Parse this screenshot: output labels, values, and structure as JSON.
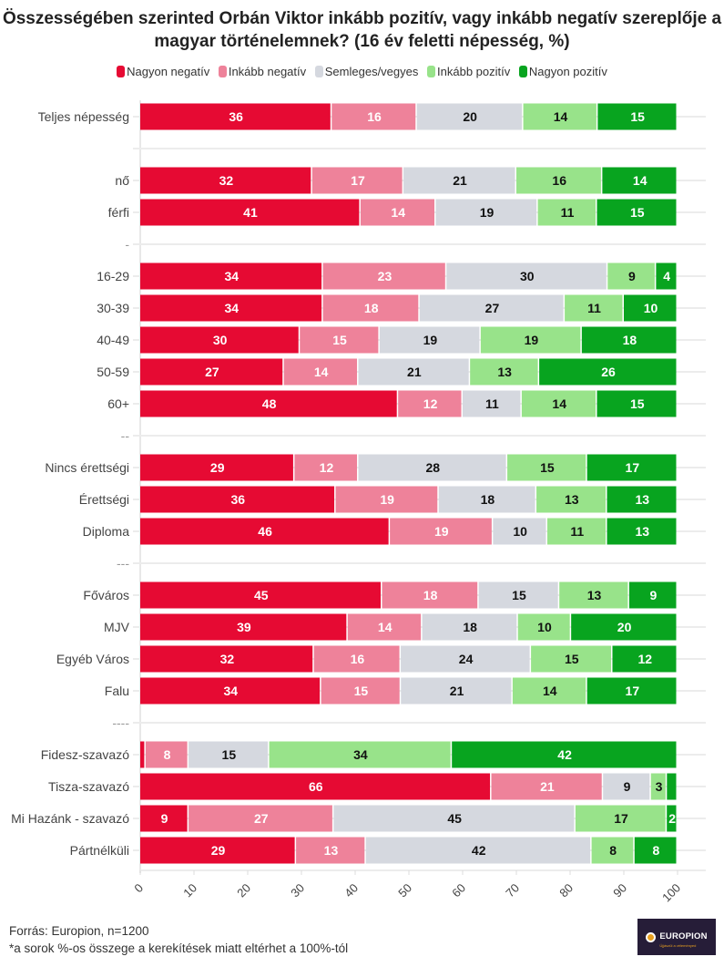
{
  "chart_data": {
    "type": "bar",
    "orientation": "horizontal",
    "stacked": true,
    "title": "Összességében szerinted Orbán Viktor inkább pozitív, vagy inkább negatív szereplője a magyar történelemnek? (16 év feletti népesség, %)",
    "xlabel": "",
    "ylabel": "",
    "xlim": [
      0,
      100
    ],
    "x_ticks": [
      "0",
      "10",
      "20",
      "30",
      "40",
      "50",
      "60",
      "70",
      "80",
      "90",
      "100"
    ],
    "grid": true,
    "legend_position": "top-center",
    "series": [
      {
        "name": "Nagyon negatív",
        "color": "#E60A33",
        "label_color": "#ffffff"
      },
      {
        "name": "Inkább negatív",
        "color": "#EE829A",
        "label_color": "#ffffff"
      },
      {
        "name": "Semleges/vegyes",
        "color": "#D5D8DF",
        "label_color": "#111111"
      },
      {
        "name": "Inkább pozitív",
        "color": "#98E38A",
        "label_color": "#111111"
      },
      {
        "name": "Nagyon pozitív",
        "color": "#08A41F",
        "label_color": "#ffffff"
      }
    ],
    "categories": [
      {
        "label": "Teljes népesség",
        "values": [
          36,
          16,
          20,
          14,
          15
        ]
      },
      {
        "label": "",
        "values": null
      },
      {
        "label": "nő",
        "values": [
          32,
          17,
          21,
          16,
          14
        ]
      },
      {
        "label": "férfi",
        "values": [
          41,
          14,
          19,
          11,
          15
        ]
      },
      {
        "label": "-",
        "values": null
      },
      {
        "label": "16-29",
        "values": [
          34,
          23,
          30,
          9,
          4
        ]
      },
      {
        "label": "30-39",
        "values": [
          34,
          18,
          27,
          11,
          10
        ]
      },
      {
        "label": "40-49",
        "values": [
          30,
          15,
          19,
          19,
          18
        ]
      },
      {
        "label": "50-59",
        "values": [
          27,
          14,
          21,
          13,
          26
        ]
      },
      {
        "label": "60+",
        "values": [
          48,
          12,
          11,
          14,
          15
        ]
      },
      {
        "label": "--",
        "values": null
      },
      {
        "label": "Nincs érettségi",
        "values": [
          29,
          12,
          28,
          15,
          17
        ]
      },
      {
        "label": "Érettségi",
        "values": [
          36,
          19,
          18,
          13,
          13
        ]
      },
      {
        "label": "Diploma",
        "values": [
          46,
          19,
          10,
          11,
          13
        ]
      },
      {
        "label": "---",
        "values": null
      },
      {
        "label": "Főváros",
        "values": [
          45,
          18,
          15,
          13,
          9
        ]
      },
      {
        "label": "MJV",
        "values": [
          39,
          14,
          18,
          10,
          20
        ]
      },
      {
        "label": "Egyéb Város",
        "values": [
          32,
          16,
          24,
          15,
          12
        ]
      },
      {
        "label": "Falu",
        "values": [
          34,
          15,
          21,
          14,
          17
        ]
      },
      {
        "label": "----",
        "values": null
      },
      {
        "label": "Fidesz-szavazó",
        "values": [
          1,
          8,
          15,
          34,
          42
        ],
        "hidden_labels": [
          0
        ]
      },
      {
        "label": "Tisza-szavazó",
        "values": [
          66,
          21,
          9,
          3,
          2
        ],
        "hidden_labels": [
          4
        ]
      },
      {
        "label": "Mi Hazánk - szavazó",
        "values": [
          9,
          27,
          45,
          17,
          2
        ]
      },
      {
        "label": "Pártnélküli",
        "values": [
          29,
          13,
          42,
          8,
          8
        ]
      }
    ]
  },
  "footer": {
    "source": "Forrás: Europion, n=1200",
    "note": "*a sorok %-os összege a kerekítések miatt eltérhet a 100%-tól"
  },
  "logo": {
    "name": "EUROPION",
    "tagline": "Újjászül a véleményed"
  }
}
